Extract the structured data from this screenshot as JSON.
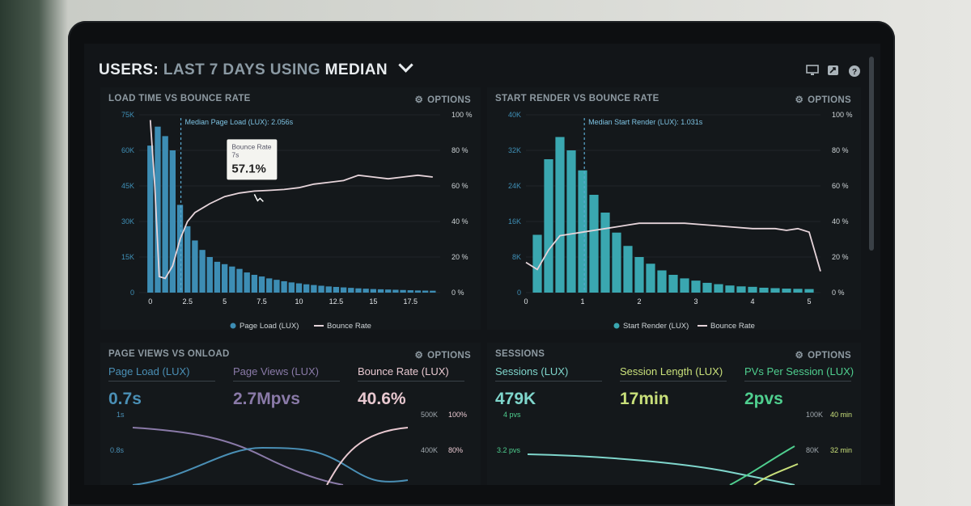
{
  "header": {
    "title_prefix": "USERS:",
    "title_period": "LAST 7 DAYS",
    "title_using": "USING",
    "title_stat": "MEDIAN"
  },
  "options_label": "OPTIONS",
  "panels": {
    "load_bounce": {
      "title": "LOAD TIME VS BOUNCE RATE",
      "median_label": "Median Page Load (LUX): 2.056s",
      "tooltip": {
        "label": "Bounce Rate",
        "x_label": "7s",
        "value": "57.1%"
      },
      "legend": {
        "bars": "Page Load (LUX)",
        "line": "Bounce Rate"
      }
    },
    "render_bounce": {
      "title": "START RENDER VS BOUNCE RATE",
      "median_label": "Median Start Render (LUX): 1.031s",
      "legend": {
        "bars": "Start Render (LUX)",
        "line": "Bounce Rate"
      }
    },
    "pageviews": {
      "title": "PAGE VIEWS VS ONLOAD",
      "metrics": [
        {
          "label": "Page Load (LUX)",
          "value": "0.7s",
          "color": "#4a8fb5"
        },
        {
          "label": "Page Views (LUX)",
          "value": "2.7Mpvs",
          "color": "#8a7aa8"
        },
        {
          "label": "Bounce Rate (LUX)",
          "value": "40.6%",
          "color": "#e8c8d0"
        }
      ],
      "left_ticks": [
        "1s",
        "0.8s"
      ],
      "right_ticks_a": [
        "500K",
        "400K"
      ],
      "right_ticks_b": [
        "100%",
        "80%"
      ]
    },
    "sessions": {
      "title": "SESSIONS",
      "metrics": [
        {
          "label": "Sessions (LUX)",
          "value": "479K",
          "color": "#7fd6cc"
        },
        {
          "label": "Session Length (LUX)",
          "value": "17min",
          "color": "#c9e07a"
        },
        {
          "label": "PVs Per Session (LUX)",
          "value": "2pvs",
          "color": "#4fcf8f"
        }
      ],
      "left_ticks": [
        "4 pvs",
        "3.2 pvs"
      ],
      "right_ticks_a": [
        "100K",
        "80K"
      ],
      "right_ticks_b": [
        "40 min",
        "32 min"
      ]
    }
  },
  "chart_data": [
    {
      "type": "bar",
      "title": "LOAD TIME VS BOUNCE RATE",
      "x_tick_labels": [
        "0",
        "2.5",
        "5",
        "7.5",
        "10",
        "12.5",
        "15",
        "17.5"
      ],
      "xlim": [
        -0.75,
        19.5
      ],
      "x": [
        0,
        0.5,
        1,
        1.5,
        2,
        2.5,
        3,
        3.5,
        4,
        4.5,
        5,
        5.5,
        6,
        6.5,
        7,
        7.5,
        8,
        8.5,
        9,
        9.5,
        10,
        10.5,
        11,
        11.5,
        12,
        12.5,
        13,
        13.5,
        14,
        14.5,
        15,
        15.5,
        16,
        16.5,
        17,
        17.5,
        18,
        18.5,
        19
      ],
      "y_left_ticks": [
        "0",
        "15K",
        "30K",
        "45K",
        "60K",
        "75K"
      ],
      "ylim_left": [
        0,
        75000
      ],
      "y_right_ticks": [
        "0 %",
        "20 %",
        "40 %",
        "60 %",
        "80 %",
        "100 %"
      ],
      "ylim_right": [
        0,
        100
      ],
      "median": 2.056,
      "series": [
        {
          "name": "Page Load (LUX)",
          "color": "#3d8db4",
          "values": [
            62000,
            70000,
            66000,
            60000,
            37000,
            28000,
            22000,
            18000,
            15000,
            13000,
            12000,
            11000,
            10000,
            8500,
            7500,
            6800,
            6000,
            5400,
            4800,
            4300,
            3900,
            3500,
            3200,
            2900,
            2600,
            2400,
            2200,
            2000,
            1800,
            1650,
            1500,
            1400,
            1300,
            1200,
            1100,
            1000,
            900,
            850,
            800
          ]
        },
        {
          "name": "Bounce Rate",
          "color": "#e6d4da",
          "x": [
            0,
            0.3,
            0.6,
            1,
            1.5,
            2,
            2.5,
            3,
            4,
            5,
            6,
            7,
            8,
            9,
            10,
            11,
            12,
            13,
            14,
            15,
            16,
            17,
            18,
            19
          ],
          "values": [
            97,
            60,
            9,
            8,
            15,
            30,
            40,
            45,
            50,
            54,
            56,
            57.1,
            57.5,
            58,
            59,
            61,
            62,
            63,
            66,
            65,
            64,
            65,
            66,
            65
          ]
        }
      ]
    },
    {
      "type": "bar",
      "title": "START RENDER VS BOUNCE RATE",
      "x_tick_labels": [
        "0",
        "1",
        "2",
        "3",
        "4",
        "5"
      ],
      "xlim": [
        0,
        5.2
      ],
      "x": [
        0.2,
        0.4,
        0.6,
        0.8,
        1,
        1.2,
        1.4,
        1.6,
        1.8,
        2,
        2.2,
        2.4,
        2.6,
        2.8,
        3,
        3.2,
        3.4,
        3.6,
        3.8,
        4,
        4.2,
        4.4,
        4.6,
        4.8,
        5
      ],
      "y_left_ticks": [
        "0",
        "8K",
        "16K",
        "24K",
        "32K",
        "40K"
      ],
      "ylim_left": [
        0,
        40000
      ],
      "y_right_ticks": [
        "0 %",
        "20 %",
        "40 %",
        "60 %",
        "80 %",
        "100 %"
      ],
      "ylim_right": [
        0,
        100
      ],
      "median": 1.031,
      "series": [
        {
          "name": "Start Render (LUX)",
          "color": "#3aa7b0",
          "values": [
            13000,
            30000,
            35000,
            32000,
            27500,
            22000,
            18000,
            13500,
            10500,
            8000,
            6500,
            5000,
            4000,
            3200,
            2700,
            2200,
            1900,
            1600,
            1400,
            1300,
            1100,
            1000,
            900,
            850,
            800
          ]
        },
        {
          "name": "Bounce Rate",
          "color": "#e6d4da",
          "x": [
            0,
            0.2,
            0.4,
            0.6,
            0.8,
            1,
            1.2,
            1.4,
            1.6,
            1.8,
            2,
            2.4,
            2.8,
            3.2,
            3.6,
            4,
            4.4,
            4.6,
            4.8,
            5,
            5.2
          ],
          "values": [
            17,
            13,
            24,
            32,
            33,
            34,
            35,
            36,
            37,
            38,
            39,
            39,
            39,
            38,
            37,
            36,
            36,
            35,
            36,
            34,
            12
          ]
        }
      ]
    }
  ]
}
